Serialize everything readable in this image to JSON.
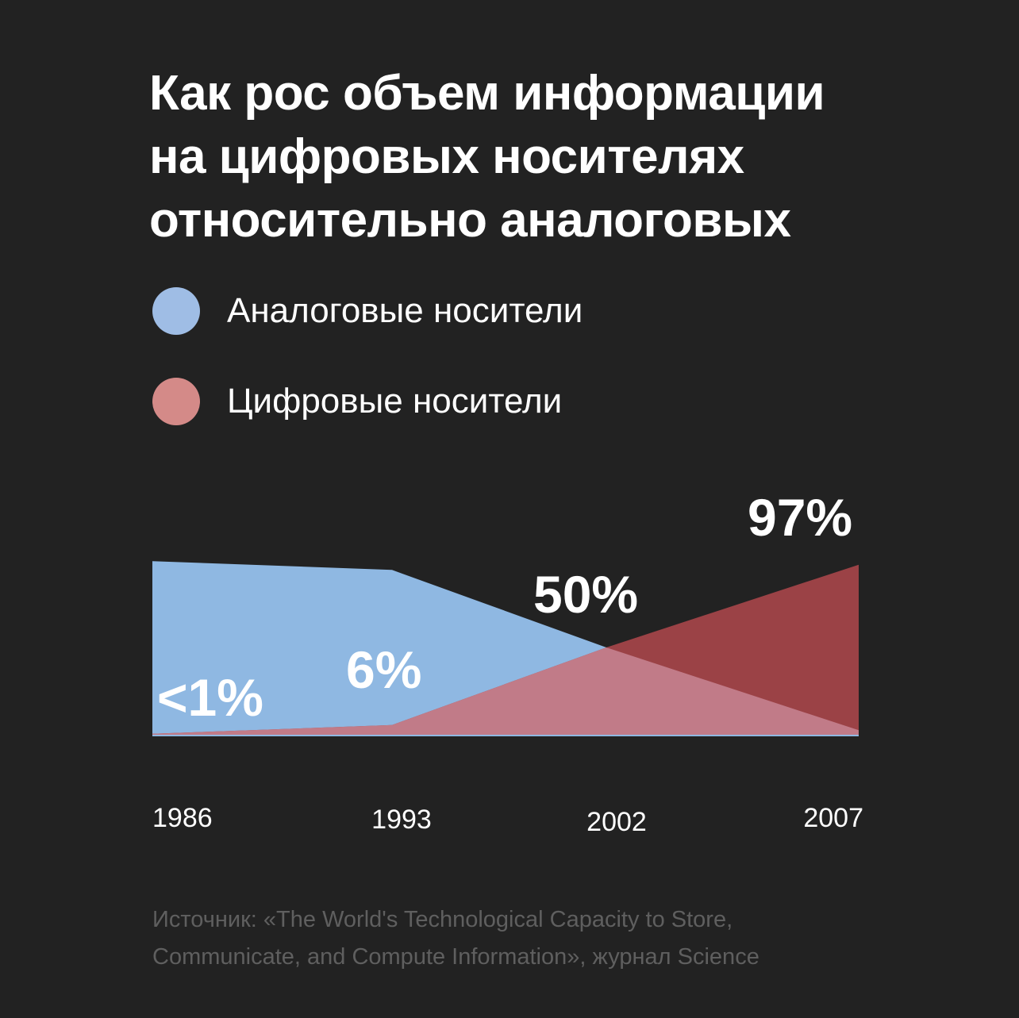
{
  "title_lines": [
    "Как рос объем информации",
    "на цифровых носителях",
    "относительно аналоговых"
  ],
  "legend": [
    {
      "label": "Аналоговые носители",
      "color": "#9fbde5"
    },
    {
      "label": "Цифровые носители",
      "color": "#d48a88"
    }
  ],
  "chart_data": {
    "type": "area",
    "x": [
      "1986",
      "1993",
      "2002",
      "2007"
    ],
    "series": [
      {
        "name": "Аналоговые носители",
        "values": [
          99,
          94,
          50,
          3
        ],
        "color": "#8fb8e2"
      },
      {
        "name": "Цифровые носители",
        "values": [
          1,
          6,
          50,
          97
        ],
        "color": "#9b4246"
      }
    ],
    "overlap_color": "#c17b88",
    "data_labels": [
      "<1%",
      "6%",
      "50%",
      "97%"
    ],
    "ylim": [
      0,
      100
    ],
    "grid": false,
    "legend_position": "top-left"
  },
  "source_lines": [
    "Источник: «The World's Technological Capacity to Store,",
    "Communicate, and Compute Information», журнал Science"
  ]
}
